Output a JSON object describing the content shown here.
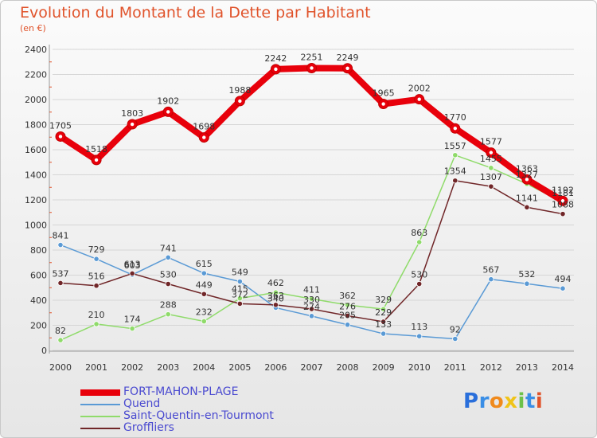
{
  "chart_data": {
    "type": "line",
    "title": "Evolution du Montant de la Dette par Habitant",
    "subtitle": "(en €)",
    "xlabel": "",
    "ylabel": "",
    "x": [
      "2000",
      "2001",
      "2002",
      "2003",
      "2004",
      "2005",
      "2006",
      "2007",
      "2008",
      "2009",
      "2010",
      "2011",
      "2012",
      "2013",
      "2014"
    ],
    "ylim": [
      0,
      2400
    ],
    "yticks": [
      "0",
      "200",
      "400",
      "600",
      "800",
      "1000",
      "1200",
      "1400",
      "1600",
      "1800",
      "2000",
      "2200",
      "2400"
    ],
    "grid": true,
    "legend_position": "bottom-left",
    "series": [
      {
        "name": "FORT-MAHON-PLAGE",
        "color": "#e8000b",
        "values": [
          1705,
          1518,
          1803,
          1902,
          1698,
          1988,
          2242,
          2251,
          2249,
          1965,
          2002,
          1770,
          1577,
          1363,
          1192
        ],
        "labels": [
          "1705",
          "1518",
          "1803",
          "1902",
          "1698",
          "1988",
          "2242",
          "2251",
          "2249",
          "1965",
          "2002",
          "1770",
          "1577",
          "1363",
          "1192"
        ]
      },
      {
        "name": "Quend",
        "color": "#5a9ad5",
        "values": [
          841,
          729,
          603,
          741,
          615,
          549,
          340,
          274,
          205,
          133,
          113,
          92,
          567,
          532,
          494
        ],
        "labels": [
          "841",
          "729",
          "603",
          "741",
          "615",
          "549",
          "340",
          "274",
          "205",
          "133",
          "113",
          "92",
          "567",
          "532",
          "494"
        ]
      },
      {
        "name": "Saint-Quentin-en-Tourmont",
        "color": "#8fdb6a",
        "values": [
          82,
          210,
          174,
          288,
          232,
          415,
          462,
          411,
          362,
          329,
          863,
          1557,
          1455,
          1327,
          1181
        ],
        "labels": [
          "82",
          "210",
          "174",
          "288",
          "232",
          "415",
          "462",
          "411",
          "362",
          "329",
          "863",
          "1557",
          "1455",
          "1327",
          "1181"
        ]
      },
      {
        "name": "Groffliers",
        "color": "#702628",
        "values": [
          537,
          516,
          613,
          530,
          449,
          372,
          363,
          330,
          276,
          229,
          530,
          1354,
          1307,
          1141,
          1088
        ],
        "labels": [
          "537",
          "516",
          "613",
          "530",
          "449",
          "372",
          "363",
          "330",
          "276",
          "229",
          "530",
          "1354",
          "1307",
          "1141",
          "1088"
        ]
      }
    ]
  },
  "logo": {
    "letters": [
      "P",
      "r",
      "o",
      "x",
      "i",
      "t",
      "i"
    ],
    "colors": [
      "#2a6fdb",
      "#3a8ee6",
      "#f08a1c",
      "#f0c419",
      "#6cc14a",
      "#3a8ee6",
      "#e0532b"
    ]
  }
}
